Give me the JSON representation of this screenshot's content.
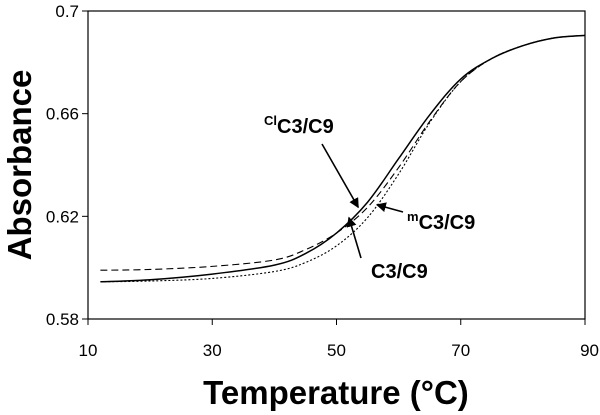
{
  "chart_data": {
    "type": "line",
    "title": "",
    "xlabel": "Temperature (°C)",
    "ylabel": "Absorbance",
    "xlim": [
      10,
      90
    ],
    "ylim": [
      0.58,
      0.7
    ],
    "xticks": [
      10,
      30,
      50,
      70,
      90
    ],
    "yticks": [
      0.58,
      0.62,
      0.66,
      0.7
    ],
    "xtick_labels": [
      "10",
      "30",
      "50",
      "70",
      "90"
    ],
    "ytick_labels": [
      "0.58",
      "0.62",
      "0.66",
      "0.7"
    ],
    "grid": false,
    "legend": "none",
    "series": [
      {
        "name": "ClC3/C9",
        "style": "solid",
        "color": "#000000",
        "x": [
          12,
          20,
          30,
          40,
          45,
          50,
          55,
          60,
          65,
          70,
          75,
          80,
          85,
          90
        ],
        "y": [
          0.5945,
          0.5953,
          0.5975,
          0.601,
          0.6055,
          0.6135,
          0.6255,
          0.6425,
          0.6595,
          0.6735,
          0.6815,
          0.6865,
          0.6895,
          0.6905
        ]
      },
      {
        "name": "mC3/C9",
        "style": "dashed",
        "color": "#000000",
        "x": [
          12,
          20,
          30,
          40,
          45,
          50,
          55,
          60,
          65,
          70,
          75,
          80,
          85,
          90
        ],
        "y": [
          0.599,
          0.5993,
          0.6005,
          0.603,
          0.607,
          0.6135,
          0.6235,
          0.639,
          0.657,
          0.6725,
          0.6815,
          0.6865,
          0.6895,
          0.6905
        ]
      },
      {
        "name": "C3/C9",
        "style": "dotted",
        "color": "#000000",
        "x": [
          12,
          20,
          30,
          40,
          45,
          50,
          55,
          60,
          65,
          70,
          75,
          80,
          85,
          90
        ],
        "y": [
          0.5945,
          0.5948,
          0.5958,
          0.5985,
          0.602,
          0.6085,
          0.6195,
          0.6365,
          0.6565,
          0.6725,
          0.6815,
          0.6865,
          0.6895,
          0.6905
        ]
      }
    ],
    "annotations": [
      {
        "prefix": "Cl",
        "text": "C3/C9",
        "arrow_to": [
          53.5,
          0.6235
        ]
      },
      {
        "prefix": "m",
        "text": "C3/C9",
        "arrow_to": [
          56.5,
          0.6245
        ]
      },
      {
        "prefix": "",
        "text": "C3/C9",
        "arrow_to": [
          52,
          0.6195
        ]
      }
    ]
  }
}
